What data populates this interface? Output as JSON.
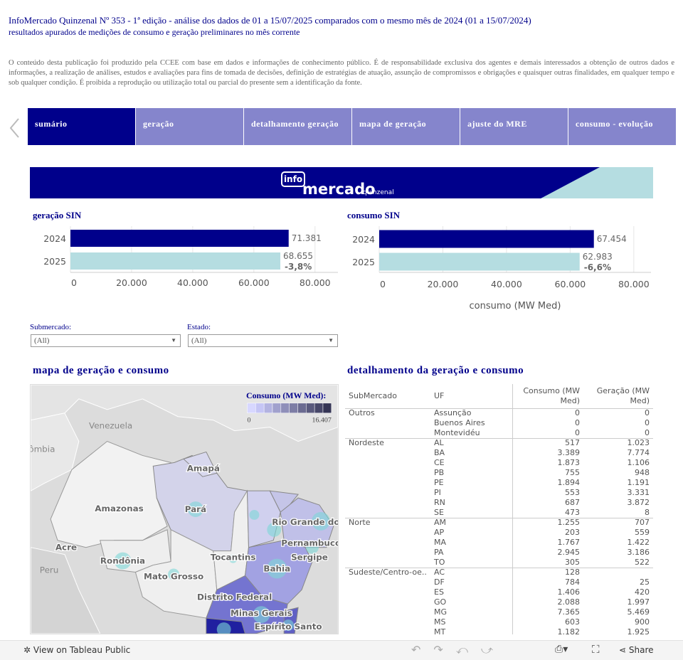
{
  "header": {
    "title": "InfoMercado Quinzenal Nº 353 - 1ª edição - análise dos dados de 01 a 15/07/2025 comparados com o mesmo mês de 2024 (01 a 15/07/2024)",
    "subtitle": "resultados apurados de medições de consumo e geração preliminares no mês corrente",
    "disclaimer": "O conteúdo desta publicação foi produzido pela CCEE com base em dados e informações de conhecimento público. É de responsabilidade exclusiva dos agentes e demais interessados a obtenção  de outros dados e informações, a realização de análises, estudos e avaliações para fins de tomada de decisões, definição de estratégias de atuação, assunção de compromissos e obrigações e quaisquer outras finalidades, em qualquer tempo e sob qualquer condição. É proibida a reprodução ou utilização total ou parcial do presente sem a identificação da fonte."
  },
  "tabs": [
    "sumário",
    "geração",
    "detalhamento geração",
    "mapa de geração",
    "ajuste do MRE",
    "consumo - evolução"
  ],
  "banner": {
    "logo_box": "info",
    "logo_main": "mercado",
    "logo_sub": "quinzenal"
  },
  "chart_data": [
    {
      "type": "bar",
      "orientation": "horizontal",
      "title": "geração SIN",
      "categories": [
        "2024",
        "2025"
      ],
      "values": [
        71381,
        68655
      ],
      "value_labels": [
        "71.381",
        "68.655"
      ],
      "annotation": "-3,8%",
      "colors": [
        "#00008b",
        "#b5dde1"
      ],
      "xlim": [
        0,
        87500
      ],
      "xticks": [
        0,
        {
          "value": 20000,
          "label": "20.000"
        },
        {
          "value": 40000,
          "label": "40.000"
        },
        {
          "value": 60000,
          "label": "60.000"
        },
        {
          "value": 80000,
          "label": "80.000"
        }
      ],
      "grid": true
    },
    {
      "type": "bar",
      "orientation": "horizontal",
      "title": "consumo SIN",
      "x_label": "consumo (MW Med)",
      "categories": [
        "2024",
        "2025"
      ],
      "values": [
        67454,
        62983
      ],
      "value_labels": [
        "67.454",
        "62.983"
      ],
      "annotation": "-6,6%",
      "colors": [
        "#00008b",
        "#b5dde1"
      ],
      "xlim": [
        0,
        85400
      ],
      "xticks": [
        0,
        {
          "value": 20000,
          "label": "20.000"
        },
        {
          "value": 40000,
          "label": "40.000"
        },
        {
          "value": 60000,
          "label": "60.000"
        },
        {
          "value": 80000,
          "label": "80.000"
        }
      ],
      "grid": true
    }
  ],
  "filters": [
    {
      "label": "Submercado:",
      "value": "(All)"
    },
    {
      "label": "Estado:",
      "value": "(All)"
    }
  ],
  "map": {
    "title": "mapa de geração e consumo",
    "legend_title": "Consumo (MW Med):",
    "legend_min": "0",
    "legend_max": "16.407",
    "labels": [
      "Venezuela",
      "Colômbia",
      "Amapá",
      "Amazonas",
      "Pará",
      "Acre",
      "Rondônia",
      "Peru",
      "Mato Grosso",
      "Tocantins",
      "Bahia",
      "Sergipe",
      "Rio Grande do Norte",
      "Pernambuco",
      "Distrito Federal",
      "Minas Gerais",
      "Espírito Santo"
    ]
  },
  "table": {
    "title": "detalhamento da geração e consumo",
    "columns": [
      "SubMercado",
      "UF",
      "Consumo (MW Med)",
      "Geração (MW Med)"
    ],
    "groups": [
      {
        "name": "Outros",
        "rows": [
          [
            "Assunção",
            "0",
            "0"
          ],
          [
            "Buenos Aires",
            "0",
            "0"
          ],
          [
            "Montevidéu",
            "0",
            "0"
          ]
        ]
      },
      {
        "name": "Nordeste",
        "rows": [
          [
            "AL",
            "517",
            "1.023"
          ],
          [
            "BA",
            "3.389",
            "7.774"
          ],
          [
            "CE",
            "1.873",
            "1.106"
          ],
          [
            "PB",
            "755",
            "948"
          ],
          [
            "PE",
            "1.894",
            "1.191"
          ],
          [
            "PI",
            "553",
            "3.331"
          ],
          [
            "RN",
            "687",
            "3.872"
          ],
          [
            "SE",
            "473",
            "8"
          ]
        ]
      },
      {
        "name": "Norte",
        "rows": [
          [
            "AM",
            "1.255",
            "707"
          ],
          [
            "AP",
            "203",
            "559"
          ],
          [
            "MA",
            "1.767",
            "1.422"
          ],
          [
            "PA",
            "2.945",
            "3.186"
          ],
          [
            "TO",
            "305",
            "522"
          ]
        ]
      },
      {
        "name": "Sudeste/Centro-oe..",
        "rows": [
          [
            "AC",
            "128",
            null
          ],
          [
            "DF",
            "784",
            "25"
          ],
          [
            "ES",
            "1.406",
            "420"
          ],
          [
            "GO",
            "2.088",
            "1.997"
          ],
          [
            "MG",
            "7.365",
            "5.469"
          ],
          [
            "MS",
            "603",
            "900"
          ],
          [
            "MT",
            "1.182",
            "1.925"
          ]
        ]
      }
    ]
  },
  "footer": {
    "view": "View on Tableau Public",
    "share": "Share"
  }
}
